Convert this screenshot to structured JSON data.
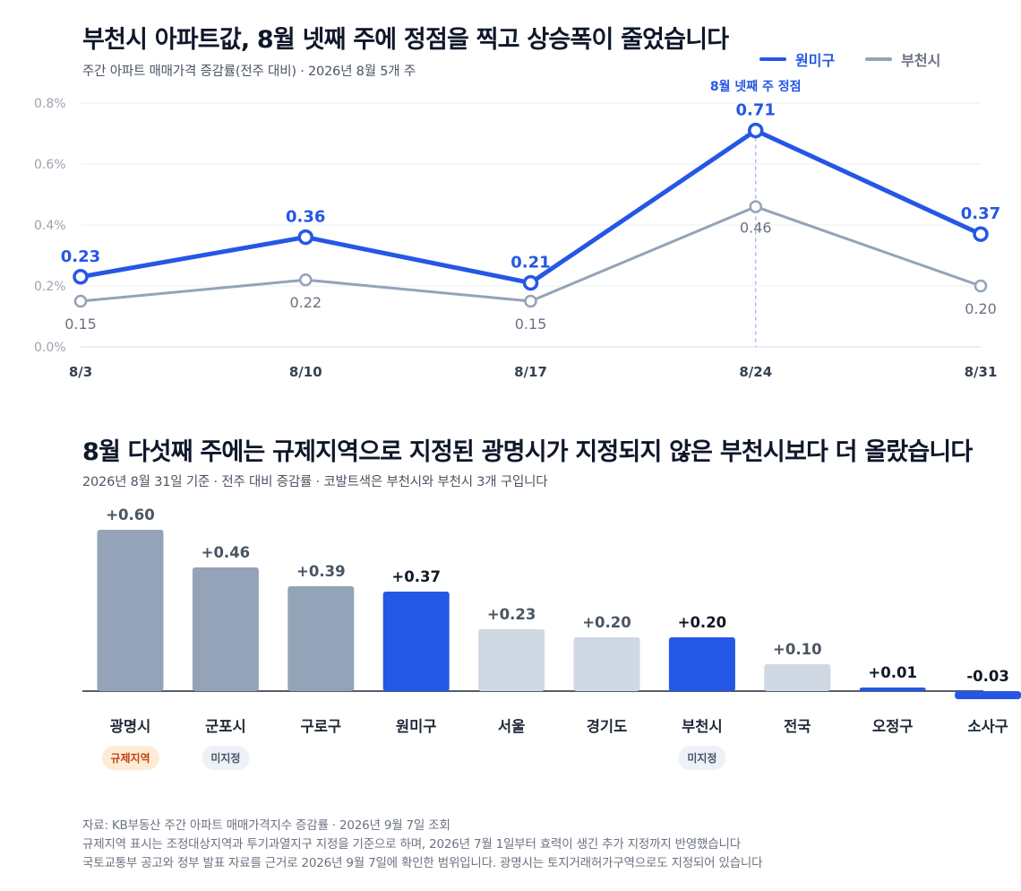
{
  "colors": {
    "wonmi": "#2557e6",
    "bucheon": "#94a3b8",
    "bar_gray": "#94a3b8",
    "bar_light": "#cfd8e3",
    "bar_highlight": "#2557e6",
    "regulated_bg": "#fdebd8",
    "regulated_fg": "#c2410c",
    "undesignated_bg": "#eef1f5",
    "undesignated_fg": "#475569"
  },
  "top": {
    "title": "부천시 아파트값, 8월 넷째 주에 정점을 찍고 상승폭이 줄었습니다",
    "subtitle": "주간 아파트 매매가격 증감률(전주 대비) · 2026년 8월 5개 주",
    "legend": [
      {
        "name": "원미구",
        "color": "#2557e6"
      },
      {
        "name": "부천시",
        "color": "#94a3b8"
      }
    ],
    "annotation": "8월 넷째 주 정점"
  },
  "bottom": {
    "title": "8월 다섯째 주에는 규제지역으로 지정된 광명시가 지정되지 않은 부천시보다 더 올랐습니다",
    "subtitle": "2026년 8월 31일 기준 · 전주 대비 증감률 · 코발트색은 부천시와 부천시 3개 구입니다"
  },
  "chart_data": [
    {
      "type": "line",
      "x": [
        "8/3",
        "8/10",
        "8/17",
        "8/24",
        "8/31"
      ],
      "y_ticks": [
        "0.0%",
        "0.2%",
        "0.4%",
        "0.6%",
        "0.8%"
      ],
      "ylim": [
        0,
        0.8
      ],
      "grid": true,
      "legend_position": "top-right",
      "series": [
        {
          "name": "원미구",
          "values": [
            0.23,
            0.36,
            0.21,
            0.71,
            0.37
          ],
          "labels": [
            "0.23",
            "0.36",
            "0.21",
            "0.71",
            "0.37"
          ]
        },
        {
          "name": "부천시",
          "values": [
            0.15,
            0.22,
            0.15,
            0.46,
            0.2
          ],
          "labels": [
            "0.15",
            "0.22",
            "0.15",
            "0.46",
            "0.20"
          ]
        }
      ],
      "peak_index": 3
    },
    {
      "type": "bar",
      "categories": [
        "광명시",
        "군포시",
        "구로구",
        "원미구",
        "서울",
        "경기도",
        "부천시",
        "전국",
        "오정구",
        "소사구"
      ],
      "values": [
        0.6,
        0.46,
        0.39,
        0.37,
        0.23,
        0.2,
        0.2,
        0.1,
        0.01,
        -0.03
      ],
      "labels": [
        "+0.60",
        "+0.46",
        "+0.39",
        "+0.37",
        "+0.23",
        "+0.20",
        "+0.20",
        "+0.10",
        "+0.01",
        "-0.03"
      ],
      "color_groups": [
        "gray",
        "gray",
        "gray",
        "highlight",
        "light",
        "light",
        "highlight",
        "light",
        "highlight",
        "highlight"
      ],
      "badges": [
        {
          "index": 0,
          "text": "규제지역",
          "kind": "regulated"
        },
        {
          "index": 1,
          "text": "미지정",
          "kind": "undesignated"
        },
        {
          "index": 6,
          "text": "미지정",
          "kind": "undesignated"
        }
      ]
    }
  ],
  "footnotes": [
    "자료: KB부동산 주간 아파트 매매가격지수 증감률 · 2026년 9월 7일 조회",
    "규제지역 표시는 조정대상지역과 투기과열지구 지정을 기준으로 하며, 2026년 7월 1일부터 효력이 생긴 추가 지정까지 반영했습니다",
    "국토교통부 공고와 정부 발표 자료를 근거로 2026년 9월 7일에 확인한 범위입니다. 광명시는 토지거래허가구역으로도 지정되어 있습니다"
  ]
}
